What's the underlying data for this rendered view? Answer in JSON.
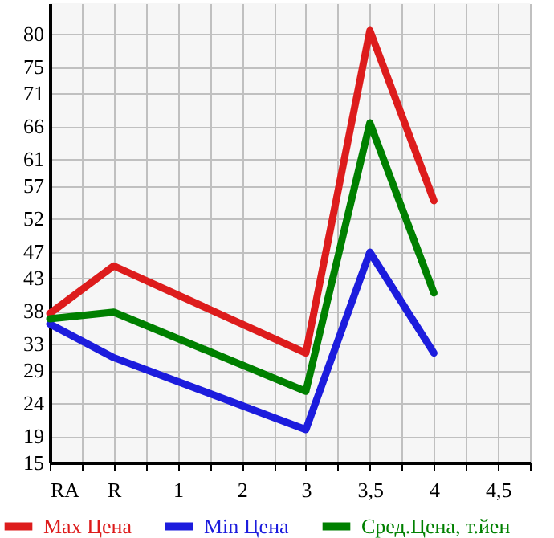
{
  "chart_data": {
    "type": "line",
    "categories": [
      "RA",
      "R",
      "1",
      "2",
      "3",
      "3,5",
      "4",
      "4,5"
    ],
    "series": [
      {
        "name": "Max Цена",
        "color": "#dd1c1c",
        "values": [
          37.6,
          44.8,
          null,
          null,
          31.6,
          80.5,
          54.7,
          null
        ]
      },
      {
        "name": "Min Цена",
        "color": "#1c1cdd",
        "values": [
          36.0,
          30.9,
          null,
          null,
          20.0,
          46.9,
          31.6,
          null
        ]
      },
      {
        "name": "Сред.Цена, т.йен",
        "color": "#008000",
        "values": [
          36.8,
          37.8,
          null,
          null,
          25.8,
          66.5,
          40.7,
          null
        ]
      }
    ],
    "ylim": [
      15,
      84.64
    ],
    "yticks": [
      15,
      19,
      24,
      29,
      33,
      38,
      43,
      47,
      52,
      57,
      61,
      66,
      71,
      75,
      80
    ],
    "grid": true,
    "legend": "bottom",
    "marker": "none",
    "line_style": "solid"
  }
}
